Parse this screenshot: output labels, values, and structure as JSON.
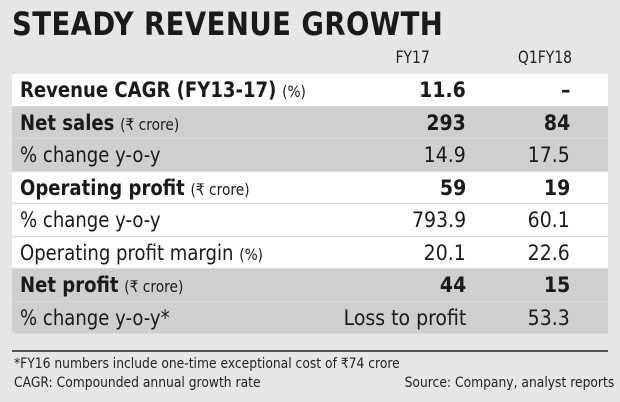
{
  "chart_data": {
    "type": "table",
    "title": "STEADY REVENUE GROWTH",
    "columns": [
      "FY17",
      "Q1FY18"
    ],
    "rows": [
      {
        "label": "Revenue CAGR (FY13-17)",
        "unit": "(%)",
        "fy17": "11.6",
        "q1fy18": "–",
        "bold": true
      },
      {
        "label": "Net sales",
        "unit": "(₹ crore)",
        "fy17": "293",
        "q1fy18": "84",
        "bold": true
      },
      {
        "label": "% change y-o-y",
        "unit": "",
        "fy17": "14.9",
        "q1fy18": "17.5",
        "bold": false
      },
      {
        "label": "Operating profit",
        "unit": "(₹ crore)",
        "fy17": "59",
        "q1fy18": "19",
        "bold": true
      },
      {
        "label": "% change y-o-y",
        "unit": "",
        "fy17": "793.9",
        "q1fy18": "60.1",
        "bold": false
      },
      {
        "label": "Operating profit margin",
        "unit": "(%)",
        "fy17": "20.1",
        "q1fy18": "22.6",
        "bold": false
      },
      {
        "label": "Net profit",
        "unit": "(₹ crore)",
        "fy17": "44",
        "q1fy18": "15",
        "bold": true
      },
      {
        "label": "% change y-o-y*",
        "unit": "",
        "fy17": "Loss to profit",
        "q1fy18": "53.3",
        "bold": false
      }
    ],
    "footnote": "*FY16 numbers include one-time exceptional cost of ₹74 crore",
    "abbreviation": "CAGR: Compounded annual growth rate",
    "source": "Source: Company, analyst reports"
  },
  "colors": {
    "page_background": "#e6e6e6",
    "row_white": "#ffffff",
    "row_grey": "#cfcfcf"
  }
}
